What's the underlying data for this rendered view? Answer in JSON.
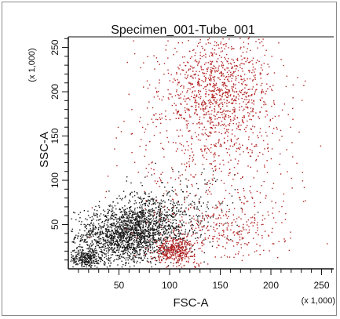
{
  "chart_data": {
    "type": "scatter",
    "title": "Specimen_001-Tube_001",
    "xlabel": "FSC-A",
    "ylabel": "SSC-A",
    "x_multiplier_label": "(x 1,000)",
    "y_multiplier_label": "(x 1,000)",
    "xlim": [
      0,
      262
    ],
    "ylim": [
      0,
      262
    ],
    "x_ticks": [
      50,
      100,
      150,
      200,
      250
    ],
    "y_ticks": [
      50,
      100,
      150,
      200,
      250
    ],
    "grid": false,
    "legend": "none",
    "series": [
      {
        "color": "#1a1a1a",
        "clusters": [
          {
            "cx": 55,
            "cy": 38,
            "sx": 24,
            "sy": 16,
            "n": 1500
          },
          {
            "cx": 80,
            "cy": 55,
            "sx": 20,
            "sy": 18,
            "n": 650
          },
          {
            "cx": 18,
            "cy": 12,
            "sx": 9,
            "sy": 6,
            "n": 300
          },
          {
            "cx": 120,
            "cy": 60,
            "sx": 22,
            "sy": 25,
            "n": 150
          }
        ]
      },
      {
        "color": "#b22222",
        "clusters": [
          {
            "cx": 148,
            "cy": 200,
            "sx": 28,
            "sy": 35,
            "n": 1100
          },
          {
            "cx": 140,
            "cy": 110,
            "sx": 45,
            "sy": 60,
            "n": 450
          },
          {
            "cx": 105,
            "cy": 22,
            "sx": 10,
            "sy": 7,
            "n": 380
          },
          {
            "cx": 150,
            "cy": 45,
            "sx": 30,
            "sy": 18,
            "n": 250
          }
        ]
      }
    ]
  }
}
